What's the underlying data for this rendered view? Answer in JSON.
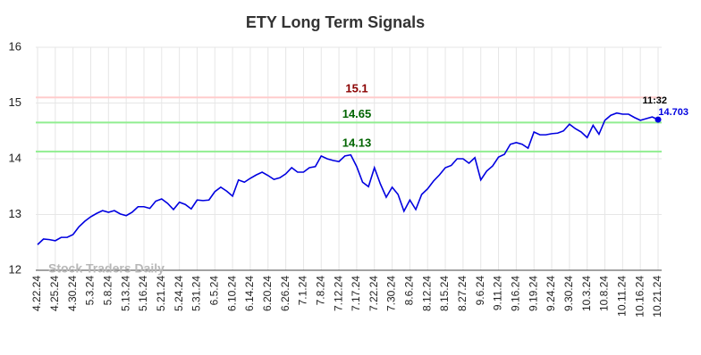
{
  "chart_data": {
    "type": "line",
    "title": "ETY Long Term Signals",
    "categories": [
      "4.22.24",
      null,
      null,
      "4.25.24",
      null,
      null,
      "4.30.24",
      null,
      null,
      "5.3.24",
      null,
      null,
      "5.8.24",
      null,
      null,
      "5.13.24",
      null,
      null,
      "5.16.24",
      null,
      null,
      "5.21.24",
      null,
      null,
      "5.24.24",
      null,
      null,
      "5.31.24",
      null,
      null,
      "6.5.24",
      null,
      null,
      "6.10.24",
      null,
      null,
      "6.14.24",
      null,
      null,
      "6.20.24",
      null,
      null,
      "6.26.24",
      null,
      null,
      "7.1.24",
      null,
      null,
      "7.8.24",
      null,
      null,
      "7.12.24",
      null,
      null,
      "7.17.24",
      null,
      null,
      "7.22.24",
      null,
      null,
      "7.30.24",
      null,
      null,
      "8.6.24",
      null,
      null,
      "8.12.24",
      null,
      null,
      "8.15.24",
      null,
      null,
      "8.27.24",
      null,
      null,
      "9.6.24",
      null,
      null,
      "9.11.24",
      null,
      null,
      "9.16.24",
      null,
      null,
      "9.19.24",
      null,
      null,
      "9.24.24",
      null,
      null,
      "9.30.24",
      null,
      null,
      "10.3.24",
      null,
      null,
      "10.8.24",
      null,
      null,
      "10.11.24",
      null,
      null,
      "10.16.24",
      null,
      null,
      "10.21.24"
    ],
    "series": [
      {
        "name": "ETY",
        "color": "#0000e0",
        "values": [
          12.46,
          12.56,
          12.55,
          12.53,
          12.59,
          12.59,
          12.64,
          12.78,
          12.88,
          12.96,
          13.02,
          13.07,
          13.04,
          13.07,
          13.01,
          12.98,
          13.04,
          13.14,
          13.14,
          13.11,
          13.24,
          13.28,
          13.2,
          13.09,
          13.22,
          13.18,
          13.1,
          13.26,
          13.25,
          13.26,
          13.41,
          13.49,
          13.42,
          13.33,
          13.62,
          13.58,
          13.65,
          13.71,
          13.76,
          13.7,
          13.63,
          13.66,
          13.73,
          13.84,
          13.76,
          13.76,
          13.84,
          13.86,
          14.05,
          14.0,
          13.97,
          13.95,
          14.05,
          14.07,
          13.86,
          13.58,
          13.5,
          13.84,
          13.55,
          13.31,
          13.49,
          13.36,
          13.06,
          13.26,
          13.09,
          13.36,
          13.46,
          13.6,
          13.71,
          13.84,
          13.88,
          14.0,
          14.0,
          13.92,
          14.02,
          13.62,
          13.78,
          13.87,
          14.03,
          14.08,
          14.26,
          14.29,
          14.26,
          14.19,
          14.48,
          14.43,
          14.43,
          14.45,
          14.46,
          14.5,
          14.62,
          14.54,
          14.48,
          14.38,
          14.6,
          14.44,
          14.69,
          14.78,
          14.82,
          14.8,
          14.8,
          14.74,
          14.69,
          14.72,
          14.75,
          14.703
        ]
      }
    ],
    "ylim": [
      12,
      16
    ],
    "yticks": [
      12,
      13,
      14,
      15,
      16
    ],
    "grid": true,
    "reference_lines": [
      {
        "value": 15.1,
        "color": "#ffcccc",
        "label_color": "#8b0000"
      },
      {
        "value": 14.65,
        "color": "#90ee90",
        "label_color": "#006400"
      },
      {
        "value": 14.13,
        "color": "#90ee90",
        "label_color": "#006400"
      }
    ],
    "last_time": "11:32",
    "watermark": "Stock Traders Daily"
  }
}
